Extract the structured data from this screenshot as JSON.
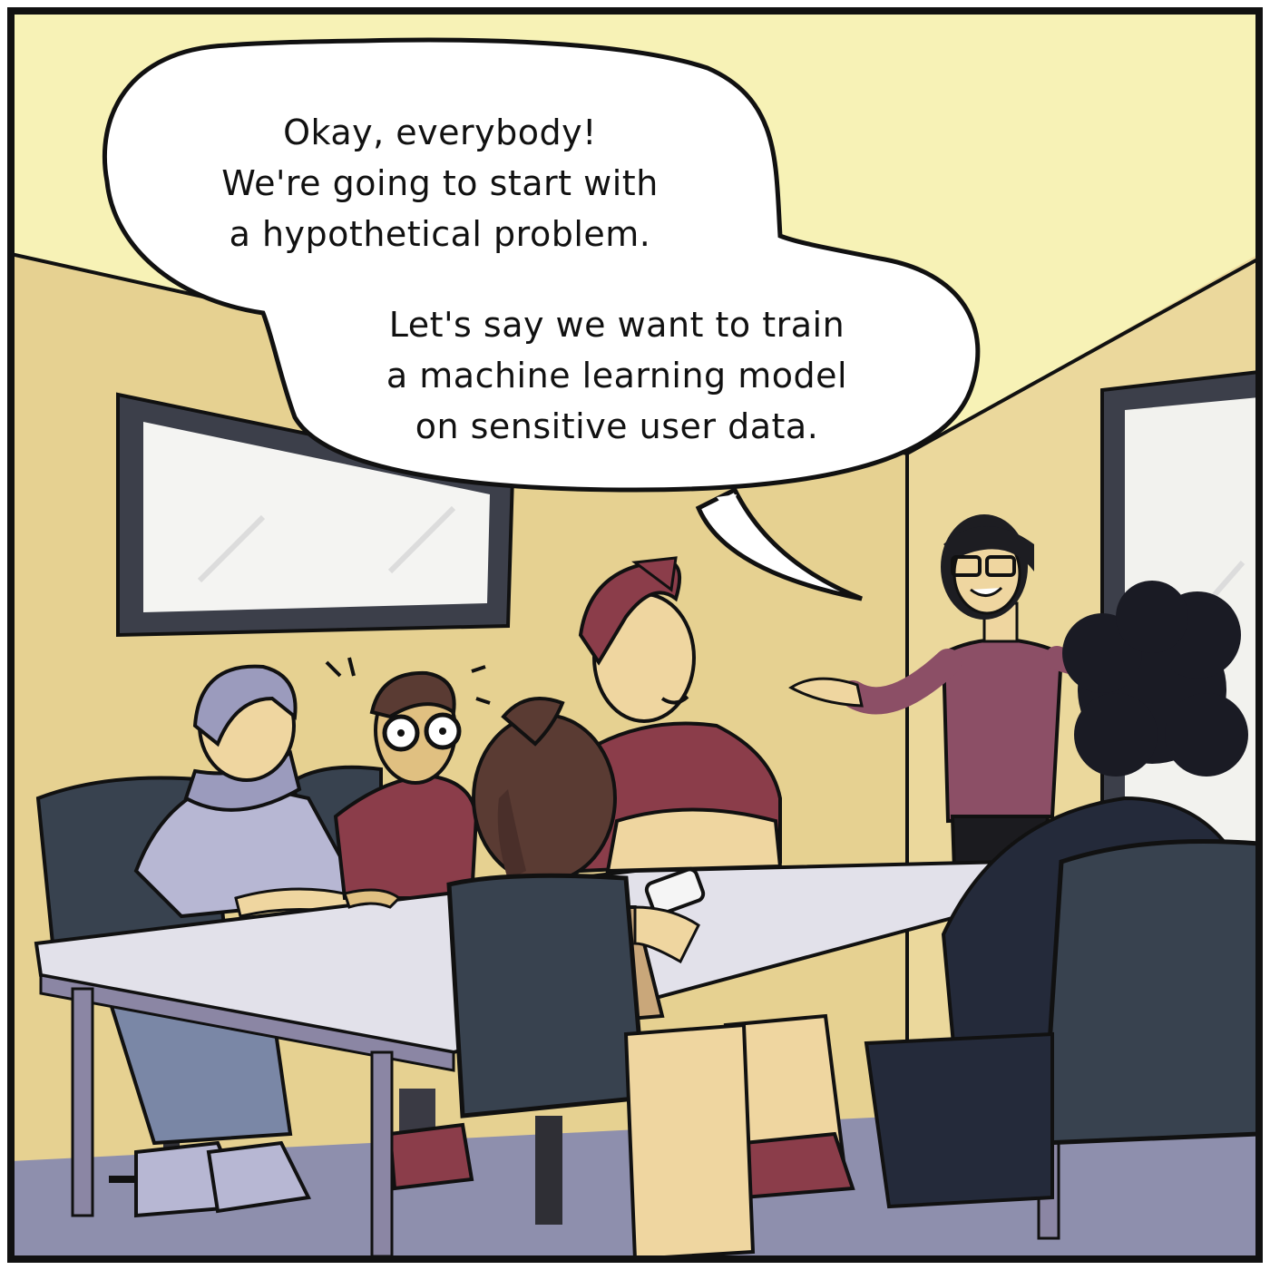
{
  "speech_bubble": {
    "paragraph_1": [
      "Okay, everybody!",
      "We're going to start with",
      "a hypothetical problem."
    ],
    "paragraph_2": [
      "Let's say we want to train",
      "a machine learning model",
      "on sensitive user data."
    ]
  },
  "colors": {
    "ceiling": "#f7f2b6",
    "wall_back": "#e6d191",
    "wall_right": "#ebd89c",
    "floor": "#8e8fad",
    "table_top": "#e2e1ea",
    "table_edge": "#8b86a4",
    "chair": "#38424f",
    "outline": "#111111",
    "presenter_shirt": "#8c4f66",
    "redhead_shirt": "#8b3d4a",
    "skin": "#efd6a0"
  }
}
